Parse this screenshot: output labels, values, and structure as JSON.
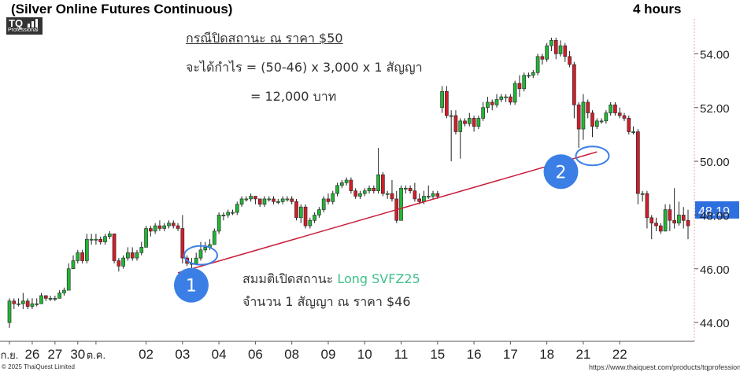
{
  "header": {
    "title": "(Silver Online Futures Continuous)",
    "timeframe": "4 hours",
    "logo_text": "TQ",
    "logo_sub": "Professional"
  },
  "annotations": {
    "close_title": "กรณีปิดสถานะ ณ ราคา $50",
    "profit_calc": "จะได้กำไร = (50-46) x 3,000 x 1 สัญญา",
    "profit_result": "= 12,000 บาท",
    "open_prefix": "สมมติเปิดสถานะ",
    "open_contract": "Long SVFZ25",
    "open_detail": "จำนวน 1 สัญญา ณ ราคา $46",
    "marker1": "1",
    "marker2": "2"
  },
  "footer": {
    "copyright": "© 2025 ThaiQuest Limited",
    "url": "https://www.thaiquest.com/products/tqprofessional/"
  },
  "colors": {
    "up": "#22b535",
    "down": "#d01e2a",
    "trendline": "#c81e3a",
    "marker_fill": "#3b7fe6",
    "current_price_bg": "#2e6fe0"
  },
  "chart_data": {
    "type": "candlestick",
    "y_ticks": [
      "44.00",
      "46.00",
      "48.00",
      "50.00",
      "52.00",
      "54.00"
    ],
    "ylim": [
      43.3,
      55.3
    ],
    "current_price": "48.19",
    "x_labels": [
      "ก.ย.",
      "26",
      "27",
      "30",
      "ต.ค.",
      "02",
      "03",
      "04",
      "06",
      "08",
      "09",
      "10",
      "11",
      "15",
      "16",
      "17",
      "18",
      "21",
      "22"
    ],
    "x_label_index": [
      0,
      5,
      10,
      15,
      19,
      30,
      38,
      46,
      54,
      62,
      70,
      78,
      86,
      94,
      102,
      110,
      118,
      126,
      134
    ],
    "trendline": {
      "from": {
        "bar": 37,
        "price": 45.85
      },
      "to": {
        "bar": 129,
        "price": 50.35
      }
    },
    "markers": [
      {
        "label": "1",
        "bar": 42,
        "price": 47.1,
        "circle_price": 46.5
      },
      {
        "label": "2",
        "bar": 128,
        "price": 49.8,
        "circle_price": 50.2
      }
    ],
    "candles": [
      [
        44.0,
        44.8,
        43.8,
        44.9
      ],
      [
        44.8,
        44.7,
        44.5,
        44.9
      ],
      [
        44.7,
        44.7,
        44.6,
        44.9
      ],
      [
        44.7,
        44.8,
        44.5,
        45.1
      ],
      [
        44.8,
        44.6,
        44.5,
        44.9
      ],
      [
        44.6,
        44.7,
        44.5,
        44.9
      ],
      [
        44.7,
        44.7,
        44.6,
        44.9
      ],
      [
        44.7,
        45.0,
        44.7,
        45.1
      ],
      [
        45.0,
        44.9,
        44.8,
        45.0
      ],
      [
        44.9,
        44.9,
        44.8,
        45.0
      ],
      [
        44.9,
        44.9,
        44.8,
        45.0
      ],
      [
        44.9,
        45.1,
        44.9,
        45.2
      ],
      [
        45.1,
        45.2,
        45.0,
        45.3
      ],
      [
        45.2,
        46.0,
        45.2,
        46.2
      ],
      [
        46.0,
        46.3,
        46.0,
        46.5
      ],
      [
        46.3,
        46.6,
        46.2,
        46.7
      ],
      [
        46.6,
        46.3,
        46.2,
        46.7
      ],
      [
        46.3,
        47.1,
        46.2,
        47.3
      ],
      [
        47.1,
        47.1,
        46.9,
        47.3
      ],
      [
        47.1,
        47.1,
        46.9,
        47.3
      ],
      [
        47.1,
        47.0,
        46.9,
        47.2
      ],
      [
        47.0,
        47.2,
        46.9,
        47.3
      ],
      [
        47.2,
        47.3,
        47.1,
        47.4
      ],
      [
        47.3,
        46.3,
        46.2,
        47.3
      ],
      [
        46.3,
        46.1,
        45.9,
        46.4
      ],
      [
        46.1,
        46.4,
        46.0,
        46.5
      ],
      [
        46.4,
        46.6,
        46.3,
        46.8
      ],
      [
        46.6,
        46.4,
        46.3,
        46.8
      ],
      [
        46.4,
        46.6,
        46.3,
        46.7
      ],
      [
        46.6,
        46.8,
        46.5,
        47.0
      ],
      [
        46.8,
        47.5,
        46.8,
        47.6
      ],
      [
        47.5,
        47.4,
        47.2,
        47.6
      ],
      [
        47.4,
        47.6,
        47.3,
        47.7
      ],
      [
        47.6,
        47.5,
        47.4,
        47.8
      ],
      [
        47.5,
        47.6,
        47.4,
        47.7
      ],
      [
        47.6,
        47.7,
        47.5,
        47.8
      ],
      [
        47.7,
        47.6,
        47.5,
        47.8
      ],
      [
        47.6,
        47.5,
        47.4,
        47.7
      ],
      [
        47.5,
        46.4,
        46.2,
        48.0
      ],
      [
        46.4,
        46.2,
        46.1,
        46.5
      ],
      [
        46.2,
        46.2,
        46.0,
        46.4
      ],
      [
        46.2,
        46.4,
        46.2,
        46.6
      ],
      [
        46.4,
        46.7,
        46.3,
        47.0
      ],
      [
        46.7,
        46.8,
        46.6,
        47.0
      ],
      [
        46.8,
        46.9,
        46.7,
        47.1
      ],
      [
        46.9,
        47.4,
        46.9,
        47.5
      ],
      [
        47.4,
        48.0,
        47.3,
        48.1
      ],
      [
        48.0,
        48.0,
        47.8,
        48.1
      ],
      [
        48.0,
        48.1,
        47.9,
        48.2
      ],
      [
        48.1,
        48.1,
        48.0,
        48.2
      ],
      [
        48.1,
        48.4,
        48.0,
        48.5
      ],
      [
        48.4,
        48.6,
        48.3,
        48.7
      ],
      [
        48.6,
        48.6,
        48.5,
        48.7
      ],
      [
        48.6,
        48.7,
        48.5,
        48.8
      ],
      [
        48.7,
        48.6,
        48.4,
        48.7
      ],
      [
        48.6,
        48.4,
        48.3,
        48.6
      ],
      [
        48.4,
        48.6,
        48.3,
        48.7
      ],
      [
        48.6,
        48.6,
        48.5,
        48.7
      ],
      [
        48.6,
        48.5,
        48.4,
        48.7
      ],
      [
        48.5,
        48.5,
        48.4,
        48.6
      ],
      [
        48.5,
        48.6,
        48.4,
        48.7
      ],
      [
        48.6,
        48.6,
        48.5,
        48.7
      ],
      [
        48.6,
        48.5,
        48.4,
        48.7
      ],
      [
        48.5,
        47.9,
        47.8,
        48.6
      ],
      [
        47.9,
        48.3,
        47.7,
        48.4
      ],
      [
        48.3,
        47.6,
        47.5,
        48.4
      ],
      [
        47.6,
        47.8,
        47.5,
        47.9
      ],
      [
        47.8,
        48.0,
        47.7,
        48.1
      ],
      [
        48.0,
        48.2,
        47.9,
        48.3
      ],
      [
        48.2,
        48.6,
        48.1,
        48.7
      ],
      [
        48.6,
        48.5,
        48.4,
        48.8
      ],
      [
        48.5,
        48.8,
        48.4,
        48.9
      ],
      [
        48.8,
        49.1,
        48.7,
        49.2
      ],
      [
        49.1,
        49.2,
        49.0,
        49.3
      ],
      [
        49.2,
        49.3,
        49.1,
        49.4
      ],
      [
        49.3,
        48.9,
        48.8,
        49.4
      ],
      [
        48.9,
        48.7,
        48.6,
        49.0
      ],
      [
        48.7,
        48.8,
        48.6,
        48.9
      ],
      [
        48.8,
        48.9,
        48.7,
        49.0
      ],
      [
        48.9,
        49.0,
        48.8,
        49.1
      ],
      [
        49.0,
        48.9,
        48.8,
        49.1
      ],
      [
        48.9,
        49.5,
        48.8,
        50.5
      ],
      [
        49.5,
        48.8,
        48.7,
        49.6
      ],
      [
        48.8,
        48.8,
        48.6,
        48.9
      ],
      [
        48.8,
        48.6,
        48.5,
        49.3
      ],
      [
        48.6,
        47.8,
        47.7,
        48.9
      ],
      [
        47.8,
        49.0,
        47.8,
        49.1
      ],
      [
        49.0,
        49.0,
        48.8,
        49.1
      ],
      [
        49.0,
        48.9,
        48.8,
        49.1
      ],
      [
        48.9,
        48.6,
        48.5,
        49.2
      ],
      [
        48.6,
        48.5,
        48.4,
        48.8
      ],
      [
        48.5,
        48.7,
        48.4,
        48.9
      ],
      [
        48.7,
        48.7,
        48.6,
        49.1
      ],
      [
        48.7,
        48.8,
        48.6,
        48.9
      ],
      [
        48.8,
        48.7,
        48.6,
        48.9
      ],
      [
        52.0,
        52.6,
        51.8,
        52.8
      ],
      [
        52.6,
        51.7,
        51.6,
        52.8
      ],
      [
        51.7,
        51.7,
        50.0,
        51.9
      ],
      [
        51.7,
        51.1,
        51.0,
        51.9
      ],
      [
        51.1,
        51.5,
        50.1,
        51.6
      ],
      [
        51.5,
        51.4,
        51.3,
        51.6
      ],
      [
        51.4,
        51.6,
        51.3,
        51.8
      ],
      [
        51.6,
        51.3,
        51.1,
        51.7
      ],
      [
        51.3,
        51.6,
        51.2,
        51.7
      ],
      [
        51.6,
        52.0,
        51.5,
        52.2
      ],
      [
        52.0,
        52.2,
        51.8,
        52.4
      ],
      [
        52.2,
        52.1,
        51.9,
        52.3
      ],
      [
        52.1,
        52.3,
        52.0,
        52.5
      ],
      [
        52.3,
        52.4,
        52.2,
        52.5
      ],
      [
        52.4,
        52.4,
        52.2,
        52.5
      ],
      [
        52.4,
        52.2,
        52.1,
        52.5
      ],
      [
        52.2,
        52.9,
        52.1,
        53.0
      ],
      [
        52.9,
        52.7,
        52.4,
        53.2
      ],
      [
        52.7,
        53.2,
        52.6,
        53.3
      ],
      [
        53.2,
        53.2,
        53.1,
        53.3
      ],
      [
        53.2,
        53.3,
        53.1,
        53.4
      ],
      [
        53.3,
        53.9,
        53.2,
        54.0
      ],
      [
        53.9,
        53.8,
        53.6,
        54.0
      ],
      [
        53.8,
        54.3,
        53.7,
        54.4
      ],
      [
        54.3,
        54.5,
        54.1,
        54.6
      ],
      [
        54.5,
        54.0,
        53.8,
        54.6
      ],
      [
        54.0,
        54.3,
        53.9,
        54.5
      ],
      [
        54.3,
        53.9,
        53.7,
        54.4
      ],
      [
        53.9,
        53.6,
        53.5,
        54.1
      ],
      [
        53.6,
        52.1,
        51.6,
        53.7
      ],
      [
        52.1,
        51.2,
        50.5,
        52.2
      ],
      [
        51.2,
        52.2,
        50.8,
        52.5
      ],
      [
        52.2,
        51.8,
        51.6,
        52.3
      ],
      [
        51.8,
        51.3,
        50.9,
        51.9
      ],
      [
        51.3,
        51.5,
        51.2,
        51.6
      ],
      [
        51.5,
        51.5,
        51.4,
        51.6
      ],
      [
        51.5,
        51.8,
        51.4,
        51.9
      ],
      [
        51.8,
        52.1,
        51.7,
        52.2
      ],
      [
        52.1,
        51.8,
        51.7,
        52.2
      ],
      [
        51.8,
        51.7,
        51.6,
        52.0
      ],
      [
        51.7,
        51.6,
        51.5,
        51.8
      ],
      [
        51.6,
        51.1,
        51.0,
        51.7
      ],
      [
        51.1,
        51.1,
        51.0,
        51.3
      ],
      [
        51.1,
        48.8,
        48.4,
        51.2
      ],
      [
        48.8,
        48.8,
        48.5,
        48.9
      ],
      [
        48.8,
        47.9,
        47.5,
        48.9
      ],
      [
        47.9,
        47.7,
        47.1,
        48.0
      ],
      [
        47.7,
        47.6,
        47.4,
        47.9
      ],
      [
        47.6,
        47.4,
        47.3,
        47.7
      ],
      [
        47.4,
        48.2,
        47.4,
        48.4
      ],
      [
        48.2,
        47.8,
        47.4,
        48.4
      ],
      [
        47.8,
        47.7,
        47.5,
        49.0
      ],
      [
        47.7,
        48.0,
        47.6,
        48.5
      ],
      [
        48.0,
        47.8,
        47.5,
        48.3
      ],
      [
        47.8,
        47.6,
        47.1,
        48.2
      ]
    ]
  }
}
